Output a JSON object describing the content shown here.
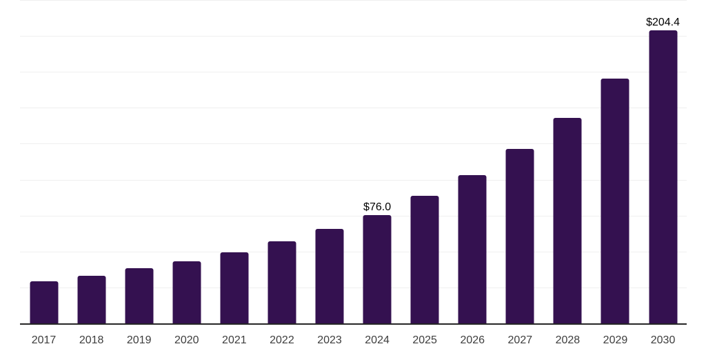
{
  "chart_data": {
    "type": "bar",
    "title": "",
    "xlabel": "",
    "ylabel": "",
    "categories": [
      "2017",
      "2018",
      "2019",
      "2020",
      "2021",
      "2022",
      "2023",
      "2024",
      "2025",
      "2026",
      "2027",
      "2028",
      "2029",
      "2030"
    ],
    "values": [
      29.7,
      33.8,
      38.7,
      43.8,
      50.1,
      57.4,
      66.1,
      76.0,
      89.0,
      103.8,
      121.7,
      143.5,
      170.8,
      204.4
    ],
    "data_labels": [
      "",
      "",
      "",
      "",
      "",
      "",
      "",
      "$76.0",
      "",
      "",
      "",
      "",
      "",
      "$204.4"
    ],
    "ylim": [
      0,
      225
    ],
    "ytick_step": 25,
    "grid": true,
    "legend": "none",
    "colors": {
      "bar": "#341150",
      "gridline": "#efefef",
      "axis_line": "#262626",
      "tick_label": "#3d3d3d",
      "data_label": "#000000",
      "background": "#ffffff"
    }
  }
}
